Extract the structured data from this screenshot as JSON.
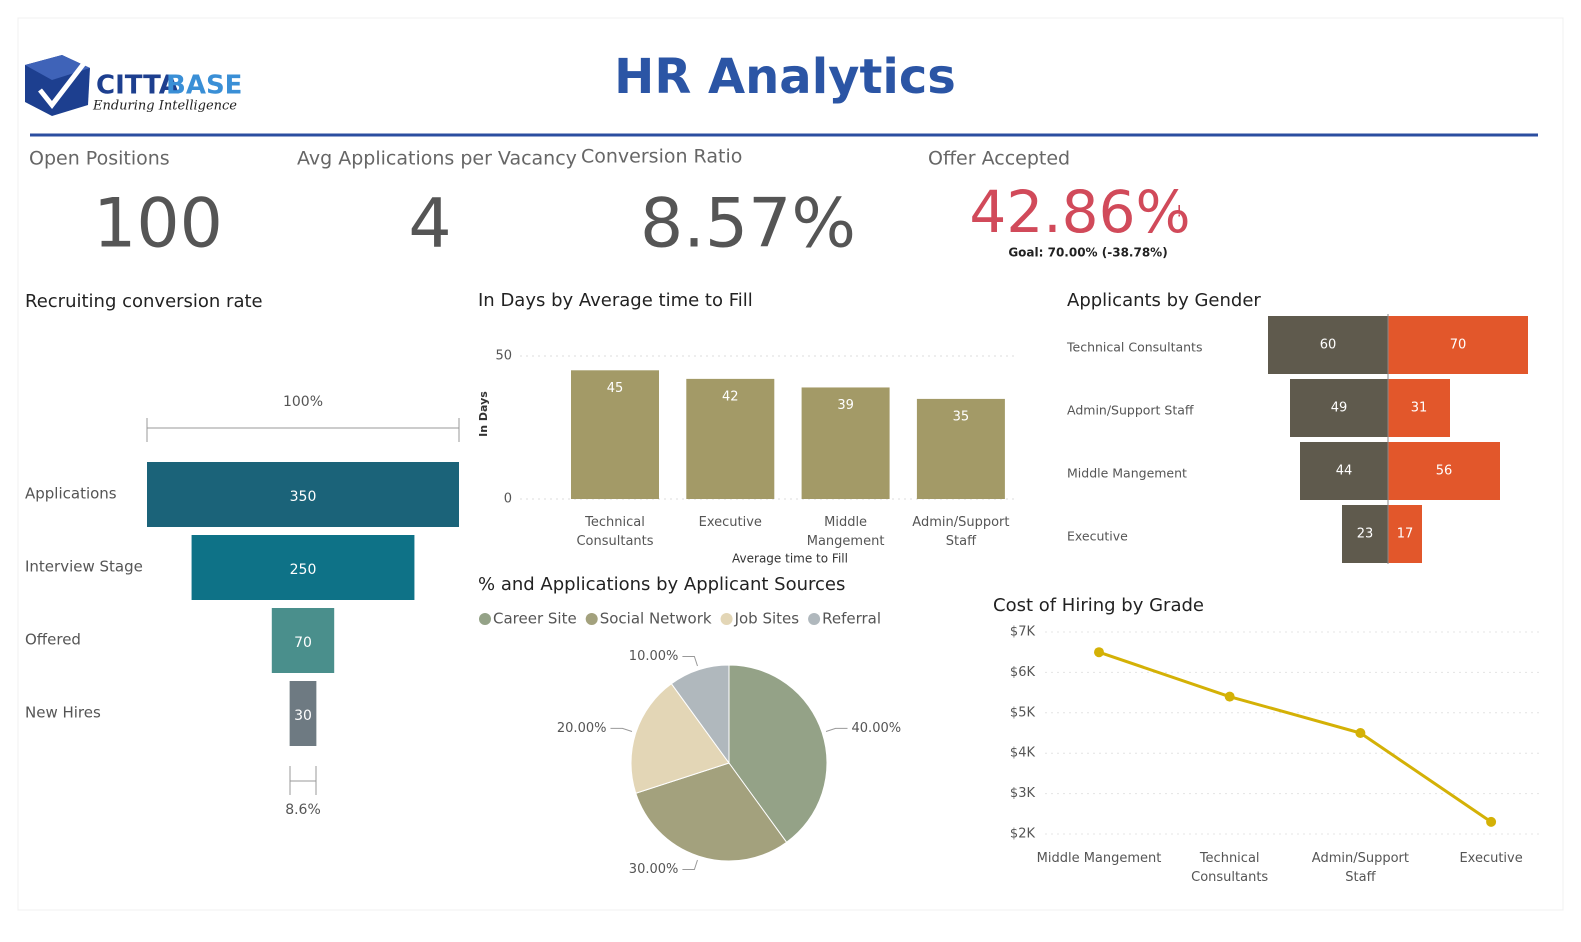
{
  "header": {
    "logo_name": "CITTA",
    "logo_name_accent": "BASE",
    "logo_tagline": "Enduring Intelligence",
    "title": "HR Analytics"
  },
  "kpis": [
    {
      "label": "Open Positions",
      "value": "100"
    },
    {
      "label": "Avg Applications per Vacancy",
      "value": "4"
    },
    {
      "label": "Conversion Ratio",
      "value": "8.57%"
    },
    {
      "label": "Offer Accepted",
      "value": "42.86%",
      "alert": "!",
      "goal": "Goal: 70.00% (-38.78%)"
    }
  ],
  "chart_data": [
    {
      "type": "funnel",
      "title": "Recruiting conversion rate",
      "categories": [
        "Applications",
        "Interview Stage",
        "Offered",
        "New Hires"
      ],
      "values": [
        350,
        250,
        70,
        30
      ],
      "colors": [
        "#1b6379",
        "#0e7287",
        "#4a8f8c",
        "#6e7a82"
      ],
      "top_label": "100%",
      "bottom_label": "8.6%"
    },
    {
      "type": "bar",
      "title": "In Days  by Average time to Fill",
      "categories": [
        "Technical Consultants",
        "Executive",
        "Middle Mangement",
        "Admin/Support Staff"
      ],
      "values": [
        45,
        42,
        39,
        35
      ],
      "color": "#a39a67",
      "ylabel": "In Days",
      "xlabel": "Average time to Fill",
      "ylim": [
        0,
        50
      ],
      "yticks": [
        0,
        50
      ],
      "grid": true
    },
    {
      "type": "diverging_bar",
      "title": "Applicants by Gender",
      "categories": [
        "Technical Consultants",
        "Admin/Support Staff",
        "Middle Mangement",
        "Executive"
      ],
      "series": [
        {
          "color": "#5f5a4d",
          "values": [
            60,
            49,
            44,
            23
          ]
        },
        {
          "color": "#e2572b",
          "values": [
            70,
            31,
            56,
            17
          ]
        }
      ]
    },
    {
      "type": "pie",
      "title": "% and Applications by Applicant Sources",
      "categories": [
        "Career Site",
        "Social Network",
        "Job Sites",
        "Referral"
      ],
      "values": [
        40,
        30,
        20,
        10
      ],
      "value_labels": [
        "40.00%",
        "30.00%",
        "20.00%",
        "10.00%"
      ],
      "colors": [
        "#94a287",
        "#a3a17d",
        "#e3d6b6",
        "#b0b8bd"
      ]
    },
    {
      "type": "line",
      "title": "Cost of Hiring by Grade",
      "categories": [
        "Middle Mangement",
        "Technical Consultants",
        "Admin/Support Staff",
        "Executive"
      ],
      "values": [
        6500,
        5400,
        4500,
        2300
      ],
      "color": "#d4b106",
      "ylim": [
        2000,
        7000
      ],
      "yticks": [
        {
          "value": 2000,
          "label": "$2K"
        },
        {
          "value": 3000,
          "label": "$3K"
        },
        {
          "value": 4000,
          "label": "$4K"
        },
        {
          "value": 5000,
          "label": "$5K"
        },
        {
          "value": 6000,
          "label": "$6K"
        },
        {
          "value": 7000,
          "label": "$7K"
        }
      ],
      "grid": true
    }
  ]
}
